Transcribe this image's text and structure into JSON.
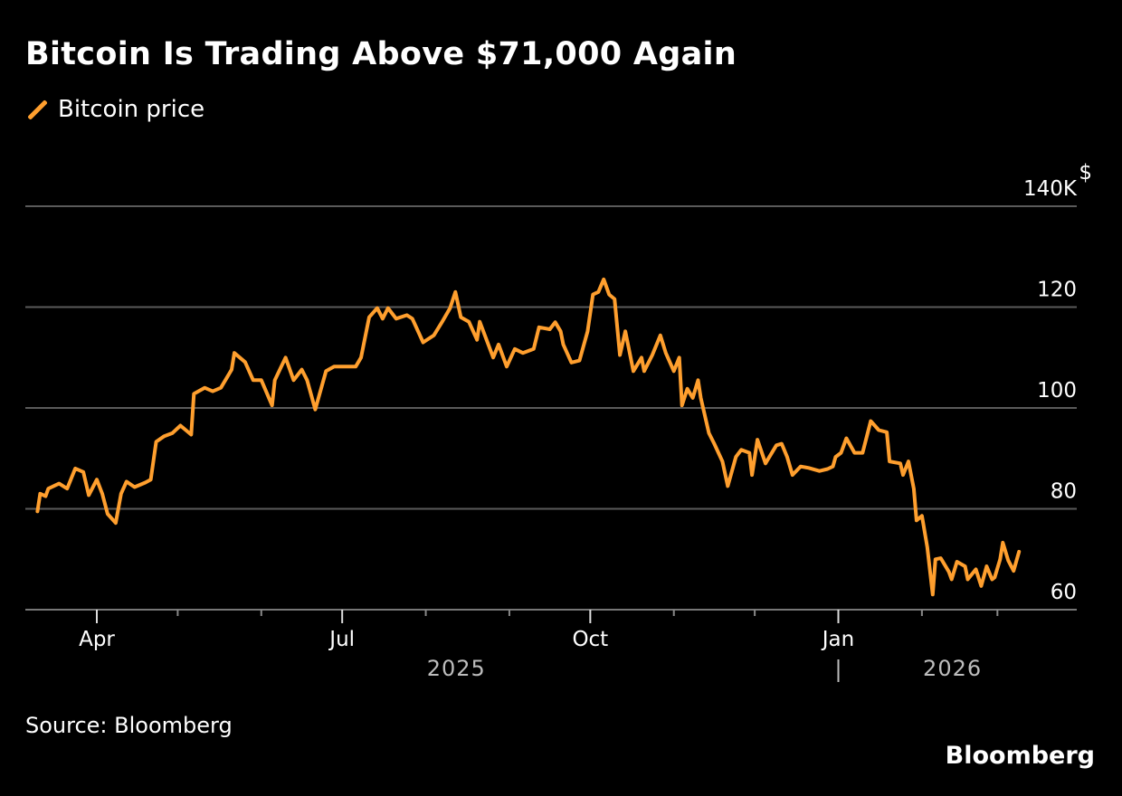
{
  "chart_data": {
    "type": "line",
    "title": "Bitcoin Is Trading Above $71,000 Again",
    "source": "Source: Bloomberg",
    "brand": "Bloomberg",
    "ylabel": "$",
    "ylim": [
      60,
      140
    ],
    "yticks": [
      {
        "value": 60,
        "label": "60"
      },
      {
        "value": 80,
        "label": "80"
      },
      {
        "value": 100,
        "label": "100"
      },
      {
        "value": 120,
        "label": "120"
      },
      {
        "value": 140,
        "label": "140K"
      }
    ],
    "xticks": [
      {
        "date": "2025-04-01",
        "label": "Apr"
      },
      {
        "date": "2025-05-01",
        "label": ""
      },
      {
        "date": "2025-06-01",
        "label": ""
      },
      {
        "date": "2025-07-01",
        "label": "Jul"
      },
      {
        "date": "2025-08-01",
        "label": ""
      },
      {
        "date": "2025-09-01",
        "label": ""
      },
      {
        "date": "2025-10-01",
        "label": "Oct"
      },
      {
        "date": "2025-11-01",
        "label": ""
      },
      {
        "date": "2025-12-01",
        "label": ""
      },
      {
        "date": "2026-01-01",
        "label": "Jan"
      },
      {
        "date": "2026-02-01",
        "label": ""
      },
      {
        "date": "2026-03-01",
        "label": ""
      }
    ],
    "years": [
      {
        "label": "2025",
        "center": "2025-08-15"
      },
      {
        "label": "2026",
        "center": "2026-02-15"
      }
    ],
    "grid": true,
    "legend_placement": "top-left",
    "colors": {
      "line": "#ff9f2e",
      "grid": "#5a5a5a",
      "background": "#000000"
    },
    "series": [
      {
        "name": "Bitcoin price",
        "unit": "thousand USD",
        "points": [
          [
            "2025-03-10",
            79.5
          ],
          [
            "2025-03-11",
            83
          ],
          [
            "2025-03-13",
            82.5
          ],
          [
            "2025-03-14",
            84
          ],
          [
            "2025-03-18",
            85
          ],
          [
            "2025-03-21",
            84
          ],
          [
            "2025-03-24",
            88
          ],
          [
            "2025-03-27",
            87.3
          ],
          [
            "2025-03-29",
            82.7
          ],
          [
            "2025-04-01",
            85.8
          ],
          [
            "2025-04-03",
            83
          ],
          [
            "2025-04-05",
            79
          ],
          [
            "2025-04-08",
            77.2
          ],
          [
            "2025-04-10",
            83
          ],
          [
            "2025-04-12",
            85.4
          ],
          [
            "2025-04-15",
            84.3
          ],
          [
            "2025-04-19",
            85.2
          ],
          [
            "2025-04-21",
            85.8
          ],
          [
            "2025-04-23",
            93.3
          ],
          [
            "2025-04-26",
            94.4
          ],
          [
            "2025-04-29",
            95
          ],
          [
            "2025-05-02",
            96.5
          ],
          [
            "2025-05-06",
            94.7
          ],
          [
            "2025-05-07",
            102.8
          ],
          [
            "2025-05-11",
            104
          ],
          [
            "2025-05-14",
            103.3
          ],
          [
            "2025-05-17",
            104
          ],
          [
            "2025-05-21",
            107.6
          ],
          [
            "2025-05-22",
            110.9
          ],
          [
            "2025-05-26",
            109.1
          ],
          [
            "2025-05-29",
            105.5
          ],
          [
            "2025-06-01",
            105.5
          ],
          [
            "2025-06-05",
            100.5
          ],
          [
            "2025-06-06",
            105.5
          ],
          [
            "2025-06-10",
            110
          ],
          [
            "2025-06-13",
            105.5
          ],
          [
            "2025-06-16",
            107.6
          ],
          [
            "2025-06-18",
            105.5
          ],
          [
            "2025-06-21",
            99.7
          ],
          [
            "2025-06-25",
            107.3
          ],
          [
            "2025-06-28",
            108.2
          ],
          [
            "2025-07-03",
            108.2
          ],
          [
            "2025-07-06",
            108.2
          ],
          [
            "2025-07-08",
            110
          ],
          [
            "2025-07-11",
            118
          ],
          [
            "2025-07-14",
            119.8
          ],
          [
            "2025-07-16",
            117.7
          ],
          [
            "2025-07-18",
            119.8
          ],
          [
            "2025-07-21",
            117.7
          ],
          [
            "2025-07-25",
            118.4
          ],
          [
            "2025-07-27",
            117.7
          ],
          [
            "2025-07-31",
            113
          ],
          [
            "2025-08-04",
            114.4
          ],
          [
            "2025-08-07",
            117
          ],
          [
            "2025-08-10",
            119.8
          ],
          [
            "2025-08-12",
            123
          ],
          [
            "2025-08-14",
            118
          ],
          [
            "2025-08-17",
            117.1
          ],
          [
            "2025-08-20",
            113.5
          ],
          [
            "2025-08-21",
            117.1
          ],
          [
            "2025-08-26",
            110
          ],
          [
            "2025-08-28",
            112.6
          ],
          [
            "2025-08-31",
            108.2
          ],
          [
            "2025-09-03",
            111.7
          ],
          [
            "2025-09-06",
            110.9
          ],
          [
            "2025-09-10",
            111.7
          ],
          [
            "2025-09-12",
            116
          ],
          [
            "2025-09-16",
            115.6
          ],
          [
            "2025-09-18",
            117
          ],
          [
            "2025-09-20",
            115.2
          ],
          [
            "2025-09-21",
            112.6
          ],
          [
            "2025-09-24",
            109
          ],
          [
            "2025-09-27",
            109.4
          ],
          [
            "2025-09-30",
            115.2
          ],
          [
            "2025-10-02",
            122.5
          ],
          [
            "2025-10-04",
            123
          ],
          [
            "2025-10-06",
            125.5
          ],
          [
            "2025-10-08",
            122.5
          ],
          [
            "2025-10-10",
            121.6
          ],
          [
            "2025-10-12",
            110.5
          ],
          [
            "2025-10-14",
            115.2
          ],
          [
            "2025-10-17",
            107.3
          ],
          [
            "2025-10-20",
            110
          ],
          [
            "2025-10-21",
            107.3
          ],
          [
            "2025-10-24",
            110.5
          ],
          [
            "2025-10-27",
            114.4
          ],
          [
            "2025-10-29",
            110.9
          ],
          [
            "2025-11-01",
            107.3
          ],
          [
            "2025-11-03",
            110
          ],
          [
            "2025-11-04",
            100.5
          ],
          [
            "2025-11-06",
            103.8
          ],
          [
            "2025-11-08",
            102
          ],
          [
            "2025-11-10",
            105.5
          ],
          [
            "2025-11-11",
            102
          ],
          [
            "2025-11-14",
            95
          ],
          [
            "2025-11-16",
            92.9
          ],
          [
            "2025-11-19",
            89.4
          ],
          [
            "2025-11-21",
            84.5
          ],
          [
            "2025-11-24",
            90.3
          ],
          [
            "2025-11-26",
            91.7
          ],
          [
            "2025-11-29",
            91.1
          ],
          [
            "2025-11-30",
            86.7
          ],
          [
            "2025-12-02",
            93.7
          ],
          [
            "2025-12-05",
            89
          ],
          [
            "2025-12-09",
            92.6
          ],
          [
            "2025-12-11",
            92.9
          ],
          [
            "2025-12-13",
            90.3
          ],
          [
            "2025-12-15",
            86.7
          ],
          [
            "2025-12-18",
            88.4
          ],
          [
            "2025-12-21",
            88.1
          ],
          [
            "2025-12-25",
            87.5
          ],
          [
            "2025-12-28",
            87.9
          ],
          [
            "2025-12-30",
            88.4
          ],
          [
            "2025-12-31",
            90.3
          ],
          [
            "2026-01-02",
            91.1
          ],
          [
            "2026-01-04",
            94
          ],
          [
            "2026-01-07",
            91.1
          ],
          [
            "2026-01-10",
            91.1
          ],
          [
            "2026-01-13",
            97.4
          ],
          [
            "2026-01-16",
            95.6
          ],
          [
            "2026-01-19",
            95.2
          ],
          [
            "2026-01-20",
            89.4
          ],
          [
            "2026-01-24",
            89
          ],
          [
            "2026-01-25",
            86.7
          ],
          [
            "2026-01-27",
            89.4
          ],
          [
            "2026-01-29",
            84
          ],
          [
            "2026-01-30",
            77.7
          ],
          [
            "2026-02-01",
            78.6
          ],
          [
            "2026-02-03",
            72.4
          ],
          [
            "2026-02-05",
            63
          ],
          [
            "2026-02-06",
            70
          ],
          [
            "2026-02-08",
            70.2
          ],
          [
            "2026-02-11",
            67.5
          ],
          [
            "2026-02-12",
            66
          ],
          [
            "2026-02-14",
            69.5
          ],
          [
            "2026-02-17",
            68.6
          ],
          [
            "2026-02-18",
            66
          ],
          [
            "2026-02-21",
            68
          ],
          [
            "2026-02-23",
            64.7
          ],
          [
            "2026-02-25",
            68.6
          ],
          [
            "2026-02-27",
            66
          ],
          [
            "2026-02-28",
            66.4
          ],
          [
            "2026-03-02",
            70
          ],
          [
            "2026-03-03",
            73.3
          ],
          [
            "2026-03-05",
            69.8
          ],
          [
            "2026-03-07",
            67.7
          ],
          [
            "2026-03-09",
            71.5
          ]
        ]
      }
    ]
  }
}
